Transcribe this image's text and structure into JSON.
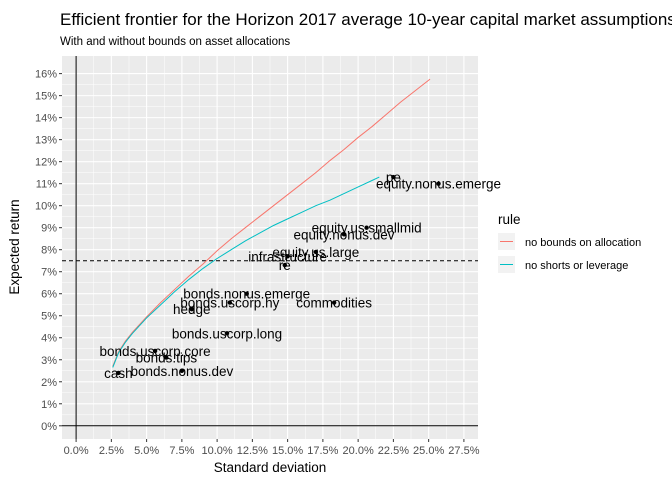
{
  "chart_data": {
    "type": "line",
    "title": "Efficient frontier for the Horizon 2017 average 10-year capital market assumptions",
    "subtitle": "With and without bounds on asset allocations",
    "xlabel": "Standard deviation",
    "ylabel": "Expected return",
    "xlim": [
      -0.01,
      0.285
    ],
    "ylim": [
      -0.006,
      0.168
    ],
    "x_ticks": [
      0,
      0.025,
      0.05,
      0.075,
      0.1,
      0.125,
      0.15,
      0.175,
      0.2,
      0.225,
      0.25,
      0.275
    ],
    "x_tick_labels": [
      "0.0%",
      "2.5%",
      "5.0%",
      "7.5%",
      "10.0%",
      "12.5%",
      "15.0%",
      "17.5%",
      "20.0%",
      "22.5%",
      "25.0%",
      "27.5%"
    ],
    "y_ticks": [
      0,
      0.01,
      0.02,
      0.03,
      0.04,
      0.05,
      0.06,
      0.07,
      0.08,
      0.09,
      0.1,
      0.11,
      0.12,
      0.13,
      0.14,
      0.15,
      0.16
    ],
    "y_tick_labels": [
      "0%",
      "1%",
      "2%",
      "3%",
      "4%",
      "5%",
      "6%",
      "7%",
      "8%",
      "9%",
      "10%",
      "11%",
      "12%",
      "13%",
      "14%",
      "15%",
      "16%"
    ],
    "grid": true,
    "hline": 0.075,
    "legend": {
      "title": "rule",
      "position": "right"
    },
    "series": [
      {
        "name": "no bounds on allocation",
        "color": "#F8766D",
        "x": [
          0.026,
          0.03,
          0.035,
          0.04,
          0.05,
          0.06,
          0.07,
          0.08,
          0.09,
          0.1,
          0.11,
          0.12,
          0.13,
          0.14,
          0.15,
          0.16,
          0.17,
          0.18,
          0.19,
          0.2,
          0.21,
          0.22,
          0.23,
          0.24,
          0.251
        ],
        "y": [
          0.027,
          0.0335,
          0.0385,
          0.0425,
          0.0495,
          0.056,
          0.062,
          0.068,
          0.0735,
          0.0795,
          0.085,
          0.09,
          0.095,
          0.1,
          0.105,
          0.11,
          0.115,
          0.1205,
          0.1255,
          0.131,
          0.136,
          0.1415,
          0.147,
          0.152,
          0.1575
        ]
      },
      {
        "name": "no shorts or leverage",
        "color": "#00BFC4",
        "x": [
          0.026,
          0.03,
          0.035,
          0.04,
          0.05,
          0.06,
          0.07,
          0.08,
          0.09,
          0.1,
          0.11,
          0.12,
          0.13,
          0.14,
          0.15,
          0.16,
          0.17,
          0.18,
          0.19,
          0.2,
          0.21,
          0.215
        ],
        "y": [
          0.0265,
          0.033,
          0.038,
          0.042,
          0.049,
          0.055,
          0.061,
          0.0665,
          0.0715,
          0.076,
          0.08,
          0.084,
          0.0875,
          0.091,
          0.094,
          0.097,
          0.1,
          0.1025,
          0.1055,
          0.1085,
          0.1115,
          0.113
        ]
      }
    ],
    "points": [
      {
        "label": "cash",
        "x": 0.03,
        "y": 0.024
      },
      {
        "label": "bonds.nonus.dev",
        "x": 0.075,
        "y": 0.025
      },
      {
        "label": "bonds.tips",
        "x": 0.064,
        "y": 0.031
      },
      {
        "label": "bonds.uscorp.core",
        "x": 0.056,
        "y": 0.034
      },
      {
        "label": "bonds.uscorp.long",
        "x": 0.107,
        "y": 0.042
      },
      {
        "label": "hedge",
        "x": 0.082,
        "y": 0.053
      },
      {
        "label": "bonds.uscorp.hy",
        "x": 0.109,
        "y": 0.056
      },
      {
        "label": "bonds.nonus.emerge",
        "x": 0.121,
        "y": 0.06
      },
      {
        "label": "commodities",
        "x": 0.183,
        "y": 0.056
      },
      {
        "label": "re",
        "x": 0.148,
        "y": 0.073
      },
      {
        "label": "infrastructure",
        "x": 0.15,
        "y": 0.077
      },
      {
        "label": "equity.us.large",
        "x": 0.17,
        "y": 0.079
      },
      {
        "label": "equity.nonus.dev",
        "x": 0.19,
        "y": 0.087
      },
      {
        "label": "equity.us.smallmid",
        "x": 0.206,
        "y": 0.09
      },
      {
        "label": "pe",
        "x": 0.225,
        "y": 0.113
      },
      {
        "label": "equity.nonus.emerge",
        "x": 0.257,
        "y": 0.11
      }
    ]
  }
}
